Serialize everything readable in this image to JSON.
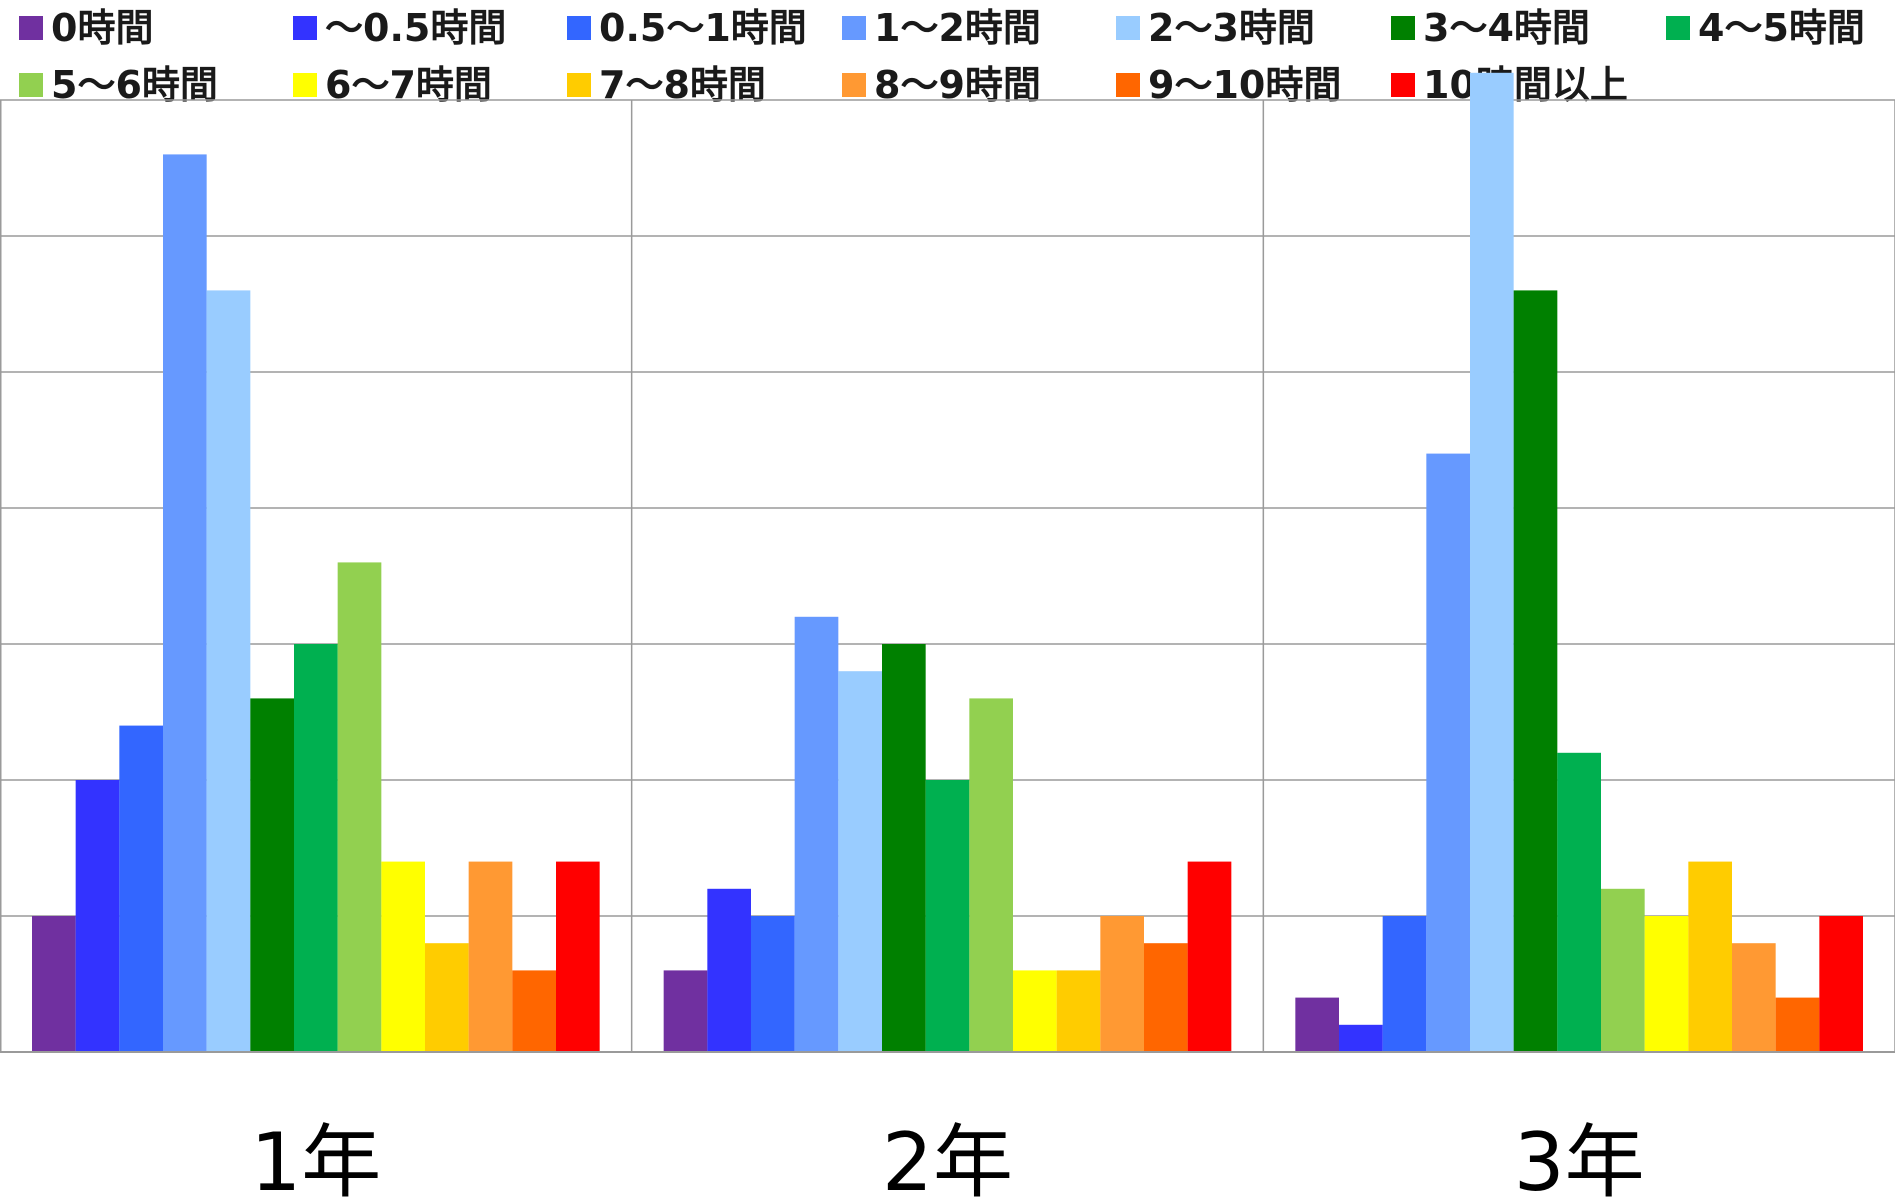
{
  "chart_data": {
    "type": "bar",
    "categories": [
      "1年",
      "2年",
      "3年"
    ],
    "series": [
      {
        "name": "0時間",
        "color": "#7030A0",
        "values": [
          1,
          0.6,
          0.4
        ]
      },
      {
        "name": "～0.5時間",
        "color": "#3333FF",
        "values": [
          2,
          1.2,
          0.2
        ]
      },
      {
        "name": "0.5～1時間",
        "color": "#3366FF",
        "values": [
          2.4,
          1,
          1
        ]
      },
      {
        "name": "1～2時間",
        "color": "#6699FF",
        "values": [
          6.6,
          3.2,
          4.4
        ]
      },
      {
        "name": "2～3時間",
        "color": "#99CCFF",
        "values": [
          5.6,
          2.8,
          7.2
        ]
      },
      {
        "name": "3～4時間",
        "color": "#008000",
        "values": [
          2.6,
          3,
          5.6
        ]
      },
      {
        "name": "4～5時間",
        "color": "#00B050",
        "values": [
          3,
          2,
          2.2
        ]
      },
      {
        "name": "5～6時間",
        "color": "#92D050",
        "values": [
          3.6,
          2.6,
          1.2
        ]
      },
      {
        "name": "6～7時間",
        "color": "#FFFF00",
        "values": [
          1.4,
          0.6,
          1
        ]
      },
      {
        "name": "7～8時間",
        "color": "#FFCC00",
        "values": [
          0.8,
          0.6,
          1.4
        ]
      },
      {
        "name": "8～9時間",
        "color": "#FF9933",
        "values": [
          1.4,
          1,
          0.8
        ]
      },
      {
        "name": "9～10時間",
        "color": "#FF6600",
        "values": [
          0.6,
          0.8,
          0.4
        ]
      },
      {
        "name": "10時間以上",
        "color": "#FF0000",
        "values": [
          1.4,
          1.4,
          1
        ]
      }
    ],
    "ylim": [
      0,
      7
    ],
    "yticks": [
      0,
      1,
      2,
      3,
      4,
      5,
      6,
      7
    ],
    "show_y_tick_labels": false,
    "grid": true,
    "legend": "top"
  }
}
